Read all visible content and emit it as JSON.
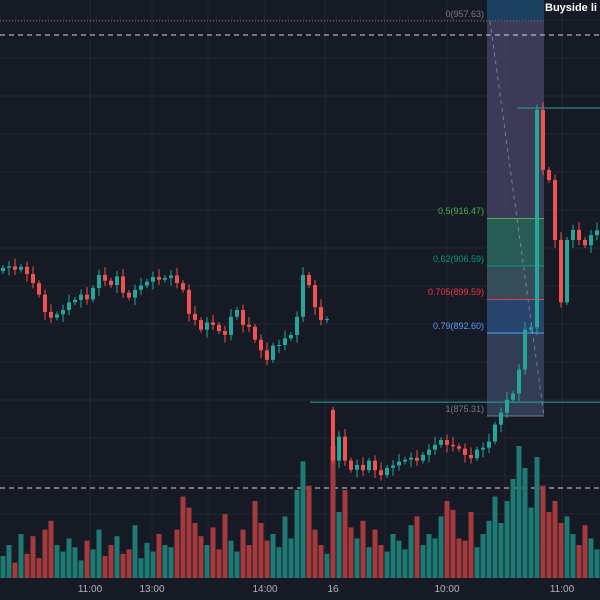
{
  "chart_data": {
    "type": "candlestick",
    "price_range": [
      856,
      960
    ],
    "closes_left": [
      906.2,
      906.5,
      905.8,
      906.4,
      904.9,
      903,
      900.6,
      897,
      895.8,
      896.5,
      897.4,
      899,
      899.5,
      900.6,
      899.6,
      902,
      904.7,
      903.5,
      902.6,
      904.4,
      901,
      900,
      901.6,
      902.5,
      903.3,
      904.3,
      903.7,
      904.1,
      904.6,
      903,
      901.6,
      896.6,
      895.3,
      893.3,
      894.8,
      894.3,
      893,
      892.2,
      896,
      897.4,
      894.3,
      893.9,
      891.2,
      889,
      887,
      890,
      890.1,
      891.5,
      892.2,
      896,
      904.7,
      902.6,
      898,
      895.3,
      895.5
    ],
    "closes_right": [
      866,
      871,
      866,
      864.1,
      865.1,
      864,
      866,
      864,
      863,
      864.5,
      865,
      865.8,
      866.2,
      866.6,
      866,
      867.2,
      868.3,
      869.3,
      870.3,
      869.3,
      869,
      868.5,
      867.2,
      866.5,
      868.3,
      868.7,
      870,
      873.5,
      876,
      878.7,
      880,
      885,
      893.3,
      893.8,
      939.1,
      926.6,
      924.5,
      912,
      899,
      912,
      914.1,
      912,
      910.9,
      913,
      914
    ],
    "volumes_left": [
      20,
      30,
      14,
      40,
      22,
      38,
      18,
      44,
      52,
      30,
      24,
      36,
      28,
      16,
      34,
      26,
      44,
      20,
      30,
      38,
      22,
      26,
      48,
      18,
      32,
      24,
      40,
      30,
      28,
      44,
      74,
      64,
      50,
      38,
      30,
      46,
      26,
      58,
      34,
      24,
      44,
      30,
      70,
      50,
      34,
      40,
      28,
      56,
      36,
      80,
      106,
      84,
      44,
      30,
      22
    ],
    "volumes_right": [
      120,
      60,
      80,
      46,
      36,
      52,
      28,
      44,
      30,
      24,
      40,
      34,
      26,
      48,
      56,
      30,
      40,
      36,
      56,
      70,
      62,
      36,
      34,
      60,
      28,
      40,
      52,
      74,
      50,
      70,
      90,
      120,
      100,
      64,
      110,
      84,
      60,
      70,
      50,
      56,
      40,
      30,
      48,
      36,
      26
    ],
    "fib_levels": [
      {
        "ratio": "0",
        "price": 957.63,
        "label": "0(957.63)",
        "color": "#787b86"
      },
      {
        "ratio": "0.5",
        "price": 916.47,
        "label": "0.5(916.47)",
        "color": "#4caf50"
      },
      {
        "ratio": "0.62",
        "price": 906.59,
        "label": "0.62(906.59)",
        "color": "#089981"
      },
      {
        "ratio": "0.705",
        "price": 899.59,
        "label": "0.705(899.59)",
        "color": "#f23645"
      },
      {
        "ratio": "0.79",
        "price": 892.6,
        "label": "0.79(892.60)",
        "color": "#5b9cf6"
      },
      {
        "ratio": "1",
        "price": 875.31,
        "label": "1(875.31)",
        "color": "#787b86"
      }
    ],
    "dashed_levels": [
      954.7,
      860.3
    ],
    "teal_levels": [
      939.5,
      878.2
    ],
    "annotation": "Buyside li",
    "x_ticks": [
      "11:00",
      "13:00",
      "14:00",
      "16",
      "10:00",
      "11:00"
    ],
    "colors": {
      "up": "#26a69a",
      "down": "#ef5350",
      "vol_up": "#1e7a72",
      "vol_down": "#a53a3e",
      "teal_line": "#2aa39a"
    }
  }
}
